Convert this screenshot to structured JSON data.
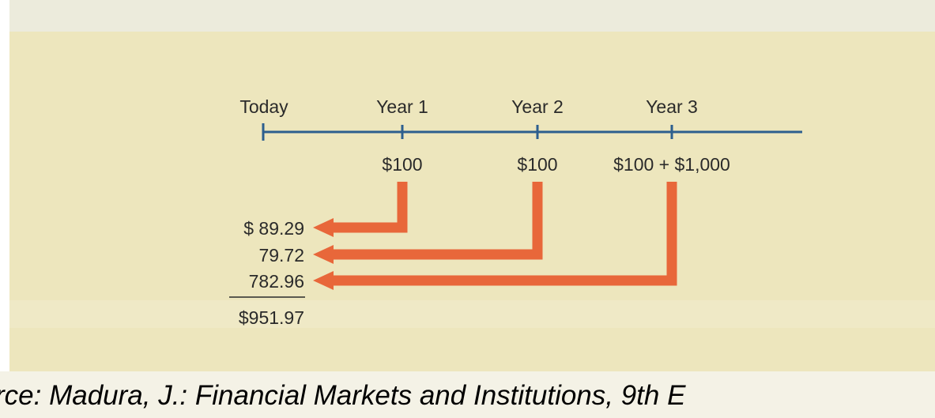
{
  "timeline": {
    "labels": [
      "Today",
      "Year 1",
      "Year 2",
      "Year 3"
    ]
  },
  "cash_flows": [
    "$100",
    "$100",
    "$100 + $1,000"
  ],
  "present_values": [
    "$ 89.29",
    "79.72",
    "782.96"
  ],
  "total": "$951.97",
  "caption": "rce: Madura, J.: Financial Markets and Institutions, 9th E"
}
